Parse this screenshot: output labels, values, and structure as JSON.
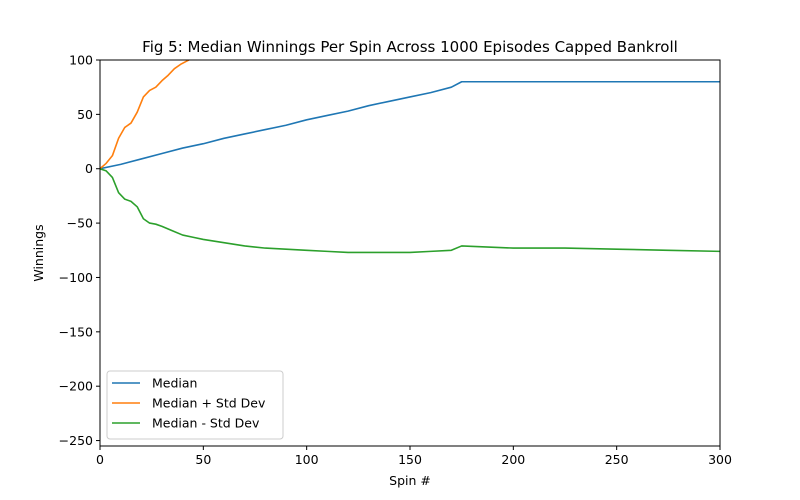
{
  "chart_data": {
    "type": "line",
    "title": "Fig 5: Median Winnings Per Spin Across 1000 Episodes Capped Bankroll",
    "xlabel": "Spin #",
    "ylabel": "Winnings",
    "xlim": [
      0,
      300
    ],
    "ylim": [
      -255,
      100
    ],
    "xticks": [
      0,
      50,
      100,
      150,
      200,
      250,
      300
    ],
    "yticks": [
      -250,
      -200,
      -150,
      -100,
      -50,
      0,
      50,
      100
    ],
    "grid": false,
    "legend_position": "lower-left",
    "series": [
      {
        "name": "Median",
        "color": "#1f77b4",
        "x": [
          0,
          10,
          20,
          30,
          40,
          50,
          60,
          70,
          80,
          90,
          100,
          110,
          120,
          130,
          140,
          150,
          160,
          170,
          175,
          200,
          250,
          300
        ],
        "y": [
          0,
          4,
          9,
          14,
          19,
          23,
          28,
          32,
          36,
          40,
          45,
          49,
          53,
          58,
          62,
          66,
          70,
          75,
          80,
          80,
          80,
          80
        ]
      },
      {
        "name": "Median + Std Dev",
        "color": "#ff7f0e",
        "x": [
          0,
          3,
          6,
          9,
          12,
          15,
          18,
          21,
          24,
          27,
          30,
          33,
          36,
          39,
          42,
          43
        ],
        "y": [
          0,
          5,
          12,
          28,
          38,
          42,
          52,
          66,
          72,
          75,
          81,
          86,
          92,
          96,
          99,
          100
        ]
      },
      {
        "name": "Median - Std Dev",
        "color": "#2ca02c",
        "x": [
          0,
          3,
          6,
          9,
          12,
          15,
          18,
          21,
          24,
          27,
          30,
          35,
          40,
          45,
          50,
          60,
          70,
          80,
          90,
          100,
          110,
          120,
          130,
          140,
          150,
          160,
          170,
          175,
          200,
          225,
          250,
          275,
          300
        ],
        "y": [
          0,
          -2,
          -8,
          -22,
          -28,
          -30,
          -35,
          -46,
          -50,
          -51,
          -53,
          -57,
          -61,
          -63,
          -65,
          -68,
          -71,
          -73,
          -74,
          -75,
          -76,
          -77,
          -77,
          -77,
          -77,
          -76,
          -75,
          -71,
          -73,
          -73,
          -74,
          -75,
          -76
        ]
      }
    ]
  }
}
